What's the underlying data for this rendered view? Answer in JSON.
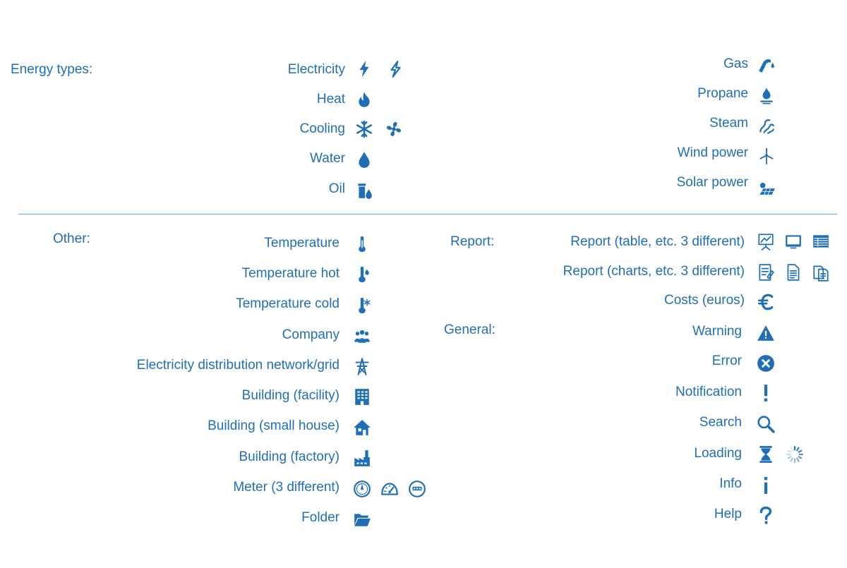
{
  "accent_color": "#1f6fb8",
  "energy": {
    "heading": "Energy types:",
    "left": [
      {
        "label": "Electricity",
        "icons": [
          "lightning-bolt-icon",
          "lightning-bolt-outline-icon"
        ]
      },
      {
        "label": "Heat",
        "icons": [
          "flame-icon"
        ]
      },
      {
        "label": "Cooling",
        "icons": [
          "snowflake-icon",
          "fan-icon"
        ]
      },
      {
        "label": "Water",
        "icons": [
          "water-drop-icon"
        ]
      },
      {
        "label": "Oil",
        "icons": [
          "oil-barrel-icon"
        ]
      }
    ],
    "right": [
      {
        "label": "Gas",
        "icons": [
          "gas-nozzle-icon"
        ]
      },
      {
        "label": "Propane",
        "icons": [
          "propane-burner-icon"
        ]
      },
      {
        "label": "Steam",
        "icons": [
          "steam-icon"
        ]
      },
      {
        "label": "Wind power",
        "icons": [
          "wind-turbine-icon"
        ]
      },
      {
        "label": "Solar power",
        "icons": [
          "solar-panel-icon"
        ]
      }
    ]
  },
  "other": {
    "heading": "Other:",
    "items": [
      {
        "label": "Temperature",
        "icons": [
          "thermometer-icon"
        ]
      },
      {
        "label": "Temperature hot",
        "icons": [
          "thermometer-hot-icon"
        ]
      },
      {
        "label": "Temperature cold",
        "icons": [
          "thermometer-cold-icon"
        ]
      },
      {
        "label": "Company",
        "icons": [
          "people-group-icon"
        ]
      },
      {
        "label": "Electricity distribution network/grid",
        "icons": [
          "power-pylon-icon"
        ]
      },
      {
        "label": "Building (facility)",
        "icons": [
          "office-building-icon"
        ]
      },
      {
        "label": "Building (small house)",
        "icons": [
          "house-icon"
        ]
      },
      {
        "label": "Building (factory)",
        "icons": [
          "factory-icon"
        ]
      },
      {
        "label": "Meter (3 different)",
        "icons": [
          "meter-dial-icon",
          "speedometer-icon",
          "meter-gauge-icon"
        ]
      },
      {
        "label": "Folder",
        "icons": [
          "folder-icon"
        ]
      }
    ]
  },
  "report": {
    "heading": "Report:",
    "items": [
      {
        "label": "Report (table, etc. 3 different)",
        "icons": [
          "presentation-board-icon",
          "monitor-icon",
          "table-icon"
        ]
      },
      {
        "label": "Report (charts, etc. 3 different)",
        "icons": [
          "notebook-icon",
          "document-icon",
          "documents-stack-icon"
        ]
      },
      {
        "label": "Costs (euros)",
        "icons": [
          "euro-icon"
        ]
      }
    ]
  },
  "general": {
    "heading": "General:",
    "items": [
      {
        "label": "Warning",
        "icons": [
          "warning-triangle-icon"
        ]
      },
      {
        "label": "Error",
        "icons": [
          "error-circle-icon"
        ]
      },
      {
        "label": "Notification",
        "icons": [
          "exclamation-icon"
        ]
      },
      {
        "label": "Search",
        "icons": [
          "magnifier-icon"
        ]
      },
      {
        "label": "Loading",
        "icons": [
          "hourglass-icon",
          "spinner-icon"
        ]
      },
      {
        "label": "Info",
        "icons": [
          "info-icon"
        ]
      },
      {
        "label": "Help",
        "icons": [
          "question-icon"
        ]
      }
    ]
  }
}
